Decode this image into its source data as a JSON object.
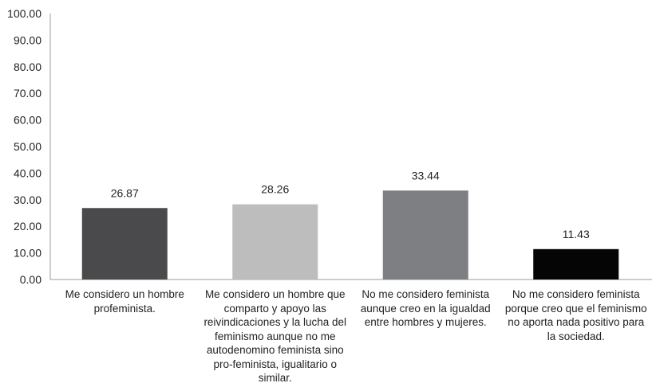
{
  "chart_data": {
    "type": "bar",
    "categories": [
      "Me considero un hombre profeminista.",
      "Me considero un hombre que comparto y apoyo las reivindicaciones y la lucha del feminismo aunque no me autodenomino feminista sino pro-feminista, igualitario o similar.",
      "No me considero feminista aunque creo en la igualdad entre hombres y mujeres.",
      "No me considero feminista porque creo que el feminismo no aporta nada positivo para la sociedad."
    ],
    "values": [
      26.87,
      28.26,
      33.44,
      11.43
    ],
    "value_labels": [
      "26.87",
      "28.26",
      "33.44",
      "11.43"
    ],
    "colors": [
      "#4a4a4c",
      "#bdbdbd",
      "#7e7f83",
      "#050505"
    ],
    "ylim": [
      0,
      100
    ],
    "y_ticks": [
      "0.00",
      "10.00",
      "20.00",
      "30.00",
      "40.00",
      "50.00",
      "60.00",
      "70.00",
      "80.00",
      "90.00",
      "100.00"
    ],
    "grid": false,
    "legend": "none"
  }
}
